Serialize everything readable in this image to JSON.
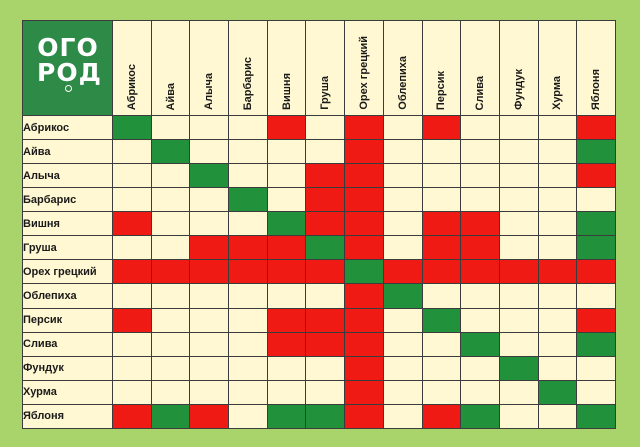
{
  "logo": {
    "line1": "ОГО",
    "line2": "РОД"
  },
  "colors": {
    "bad": "#ef1a14",
    "good": "#22913c",
    "neutral": "#fff8d2",
    "background": "#a9d46c"
  },
  "columns": [
    "Абрикос",
    "Айва",
    "Алыча",
    "Барбарис",
    "Вишня",
    "Груша",
    "Орех грецкий",
    "Облепиха",
    "Персик",
    "Слива",
    "Фундук",
    "Хурма",
    "Яблоня"
  ],
  "rows": [
    {
      "label": "Абрикос",
      "cells": [
        "g",
        "n",
        "n",
        "n",
        "r",
        "n",
        "r",
        "n",
        "r",
        "n",
        "n",
        "n",
        "r"
      ]
    },
    {
      "label": "Айва",
      "cells": [
        "n",
        "g",
        "n",
        "n",
        "n",
        "n",
        "r",
        "n",
        "n",
        "n",
        "n",
        "n",
        "g"
      ]
    },
    {
      "label": "Алыча",
      "cells": [
        "n",
        "n",
        "g",
        "n",
        "n",
        "r",
        "r",
        "n",
        "n",
        "n",
        "n",
        "n",
        "r"
      ]
    },
    {
      "label": "Барбарис",
      "cells": [
        "n",
        "n",
        "n",
        "g",
        "n",
        "r",
        "r",
        "n",
        "n",
        "n",
        "n",
        "n",
        "n"
      ]
    },
    {
      "label": "Вишня",
      "cells": [
        "r",
        "n",
        "n",
        "n",
        "g",
        "r",
        "r",
        "n",
        "r",
        "r",
        "n",
        "n",
        "g"
      ]
    },
    {
      "label": "Груша",
      "cells": [
        "n",
        "n",
        "r",
        "r",
        "r",
        "g",
        "r",
        "n",
        "r",
        "r",
        "n",
        "n",
        "g"
      ]
    },
    {
      "label": "Орех грецкий",
      "cells": [
        "r",
        "r",
        "r",
        "r",
        "r",
        "r",
        "g",
        "r",
        "r",
        "r",
        "r",
        "r",
        "r"
      ]
    },
    {
      "label": "Облепиха",
      "cells": [
        "n",
        "n",
        "n",
        "n",
        "n",
        "n",
        "r",
        "g",
        "n",
        "n",
        "n",
        "n",
        "n"
      ]
    },
    {
      "label": "Персик",
      "cells": [
        "r",
        "n",
        "n",
        "n",
        "r",
        "r",
        "r",
        "n",
        "g",
        "n",
        "n",
        "n",
        "r"
      ]
    },
    {
      "label": "Слива",
      "cells": [
        "n",
        "n",
        "n",
        "n",
        "r",
        "r",
        "r",
        "n",
        "n",
        "g",
        "n",
        "n",
        "g"
      ]
    },
    {
      "label": "Фундук",
      "cells": [
        "n",
        "n",
        "n",
        "n",
        "n",
        "n",
        "r",
        "n",
        "n",
        "n",
        "g",
        "n",
        "n"
      ]
    },
    {
      "label": "Хурма",
      "cells": [
        "n",
        "n",
        "n",
        "n",
        "n",
        "n",
        "r",
        "n",
        "n",
        "n",
        "n",
        "g",
        "n"
      ]
    },
    {
      "label": "Яблоня",
      "cells": [
        "r",
        "g",
        "r",
        "n",
        "g",
        "g",
        "r",
        "n",
        "r",
        "g",
        "n",
        "n",
        "g"
      ]
    }
  ]
}
